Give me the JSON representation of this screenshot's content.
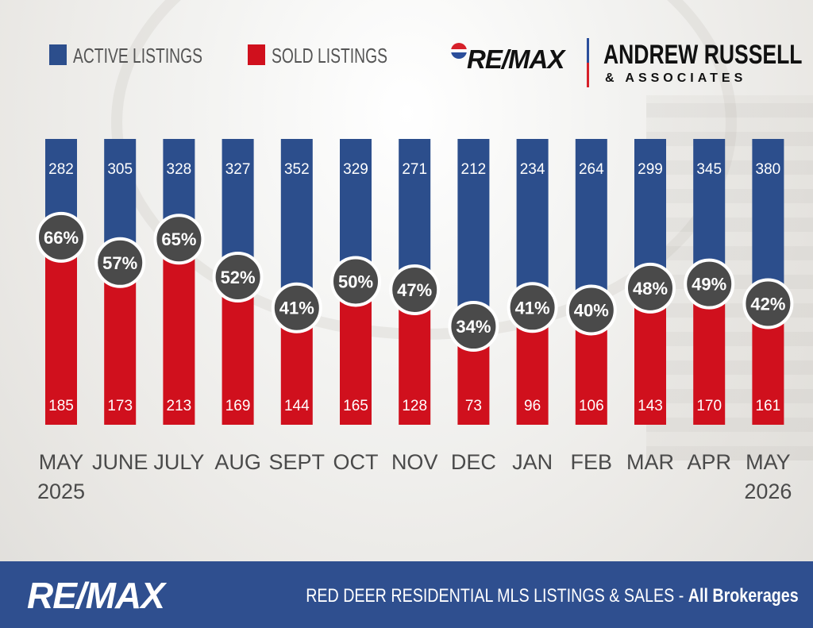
{
  "legend": {
    "active_label": "ACTIVE LISTINGS",
    "sold_label": "SOLD LISTINGS"
  },
  "brand": {
    "remax": "RE/MAX",
    "name": "ANDREW RUSSELL",
    "sub": "& ASSOCIATES"
  },
  "footer": {
    "logo": "RE/MAX",
    "title": "RED DEER RESIDENTIAL MLS LISTINGS & SALES - ",
    "title_bold": "All Brokerages"
  },
  "colors": {
    "active": "#2c4e8c",
    "sold": "#d0101d",
    "badge": "#4a4a4a",
    "footer": "#2f4f8f"
  },
  "chart_data": {
    "type": "bar",
    "categories": [
      [
        "MAY",
        "2025"
      ],
      [
        "JUNE"
      ],
      [
        "JULY"
      ],
      [
        "AUG"
      ],
      [
        "SEPT"
      ],
      [
        "OCT"
      ],
      [
        "NOV"
      ],
      [
        "DEC"
      ],
      [
        "JAN"
      ],
      [
        "FEB"
      ],
      [
        "MAR"
      ],
      [
        "APR"
      ],
      [
        "MAY",
        "2026"
      ]
    ],
    "series": [
      {
        "name": "ACTIVE LISTINGS",
        "values": [
          282,
          305,
          328,
          327,
          352,
          329,
          271,
          212,
          234,
          264,
          299,
          345,
          380
        ]
      },
      {
        "name": "SOLD LISTINGS",
        "values": [
          185,
          173,
          213,
          169,
          144,
          165,
          128,
          73,
          96,
          106,
          143,
          170,
          161
        ]
      }
    ],
    "percent_labels": [
      "66%",
      "57%",
      "65%",
      "52%",
      "41%",
      "50%",
      "47%",
      "34%",
      "41%",
      "40%",
      "48%",
      "49%",
      "42%"
    ],
    "stacked": "100% (sold share of active)",
    "grid": false,
    "legend_position": "top-left"
  }
}
